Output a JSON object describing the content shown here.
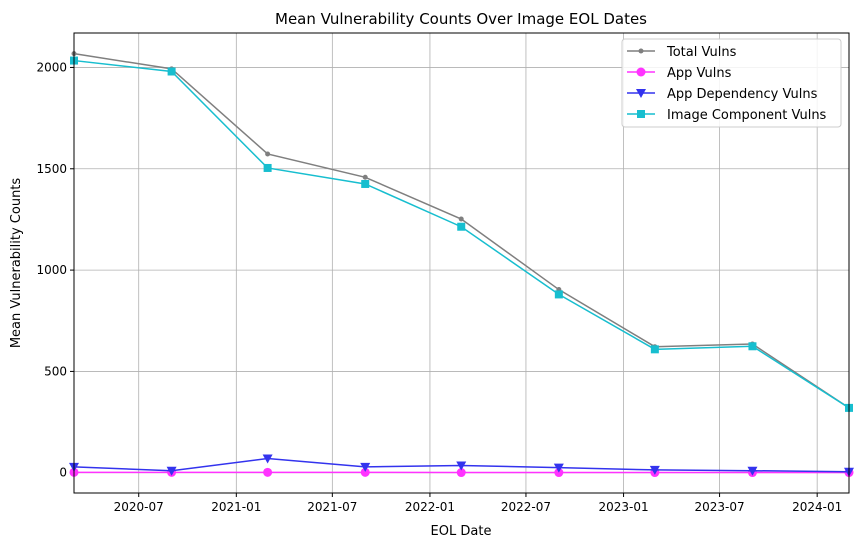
{
  "chart_data": {
    "type": "line",
    "title": "Mean Vulnerability Counts Over Image EOL Dates",
    "xlabel": "EOL Date",
    "ylabel": "Mean Vulnerability Counts",
    "x": [
      "2020-03-01",
      "2020-09-01",
      "2021-03-01",
      "2021-09-01",
      "2022-03-01",
      "2022-09-01",
      "2023-03-01",
      "2023-09-01",
      "2024-03-01"
    ],
    "xticks": [
      "2020-07",
      "2021-01",
      "2021-07",
      "2022-01",
      "2022-07",
      "2023-01",
      "2023-07",
      "2024-01"
    ],
    "yticks": [
      0,
      500,
      1000,
      1500,
      2000
    ],
    "xlim": [
      "2020-03-01",
      "2024-03-01"
    ],
    "ylim": [
      -100,
      2170
    ],
    "grid": true,
    "legend": "top-right",
    "series": [
      {
        "name": "Total Vulns",
        "color": "#7f7f7f",
        "marker": "point",
        "values": [
          2068,
          1993,
          1573,
          1458,
          1252,
          904,
          622,
          635,
          320
        ]
      },
      {
        "name": "App Vulns",
        "color": "#ff33ff",
        "marker": "circle",
        "values": [
          2,
          2,
          2,
          2,
          1,
          1,
          1,
          1,
          1
        ]
      },
      {
        "name": "App Dependency Vulns",
        "color": "#3333ee",
        "marker": "triangle-down",
        "values": [
          29,
          10,
          70,
          29,
          36,
          25,
          14,
          10,
          5
        ]
      },
      {
        "name": "Image Component Vulns",
        "color": "#17becf",
        "marker": "square",
        "values": [
          2034,
          1980,
          1504,
          1425,
          1214,
          880,
          609,
          624,
          320
        ]
      }
    ]
  }
}
